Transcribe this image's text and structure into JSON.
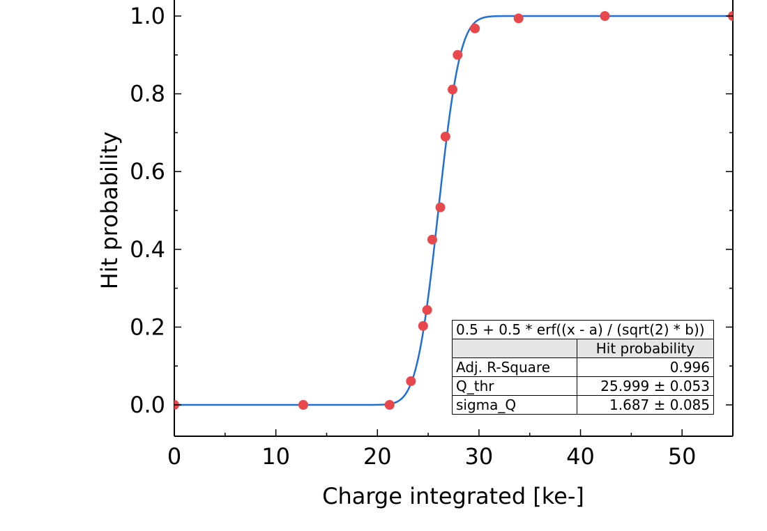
{
  "chart_data": {
    "type": "scatter",
    "xlabel": "Charge integrated [ke-]",
    "ylabel": "Hit probability",
    "xlim": [
      0,
      55
    ],
    "ylim": [
      -0.08,
      1.02
    ],
    "xticks": [
      0,
      10,
      20,
      30,
      40,
      50
    ],
    "yticks": [
      0.0,
      0.2,
      0.4,
      0.6,
      0.8,
      1.0
    ],
    "grid": false,
    "series": [
      {
        "points": [
          [
            0.0,
            0.0
          ],
          [
            12.7,
            0.0
          ],
          [
            21.2,
            0.0
          ],
          [
            23.3,
            0.061
          ],
          [
            24.5,
            0.203
          ],
          [
            24.9,
            0.244
          ],
          [
            25.4,
            0.425
          ],
          [
            26.2,
            0.508
          ],
          [
            26.7,
            0.69
          ],
          [
            27.4,
            0.811
          ],
          [
            27.9,
            0.9
          ],
          [
            29.6,
            0.968
          ],
          [
            33.9,
            0.994
          ],
          [
            42.4,
            1.0
          ],
          [
            55.0,
            1.0
          ]
        ],
        "marker_color": "#e8474b"
      },
      {
        "fit": "0.5 + 0.5 * erf((x - a) / (sqrt(2) * b))",
        "params": {
          "a": 25.999,
          "b": 1.687
        },
        "line_color": "#1f6fd6"
      }
    ]
  },
  "fit_table": {
    "equation": "0.5 + 0.5 * erf((x - a) / (sqrt(2) * b))",
    "column_header": "Hit probability",
    "rows": [
      {
        "label": "Adj. R-Square",
        "value": "0.996"
      },
      {
        "label": "Q_thr",
        "value": "25.999 ± 0.053"
      },
      {
        "label": "sigma_Q",
        "value": "1.687 ± 0.085"
      }
    ]
  }
}
